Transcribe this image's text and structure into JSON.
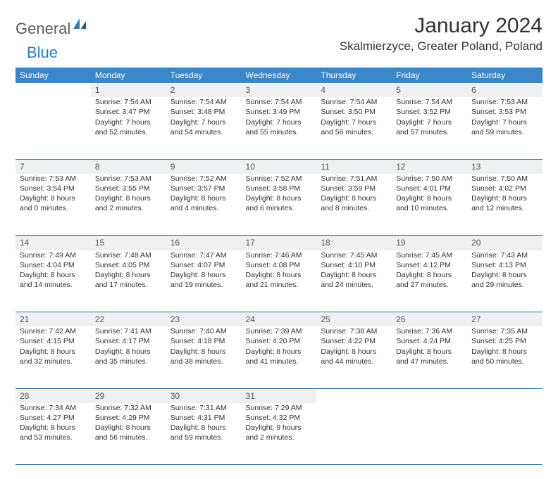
{
  "logo": {
    "text1": "General",
    "text2": "Blue",
    "icon_color": "#2a7fbf"
  },
  "title": "January 2024",
  "location": "Skalmierzyce, Greater Poland, Poland",
  "colors": {
    "header_bg": "#3b87c8",
    "header_text": "#ffffff",
    "daynum_bg": "#eef0f2",
    "rule": "#2a6ea8",
    "text": "#333333"
  },
  "day_headers": [
    "Sunday",
    "Monday",
    "Tuesday",
    "Wednesday",
    "Thursday",
    "Friday",
    "Saturday"
  ],
  "weeks": [
    {
      "nums": [
        "",
        "1",
        "2",
        "3",
        "4",
        "5",
        "6"
      ],
      "cells": [
        null,
        {
          "sr": "7:54 AM",
          "ss": "3:47 PM",
          "dl": "7 hours and 52 minutes."
        },
        {
          "sr": "7:54 AM",
          "ss": "3:48 PM",
          "dl": "7 hours and 54 minutes."
        },
        {
          "sr": "7:54 AM",
          "ss": "3:49 PM",
          "dl": "7 hours and 55 minutes."
        },
        {
          "sr": "7:54 AM",
          "ss": "3:50 PM",
          "dl": "7 hours and 56 minutes."
        },
        {
          "sr": "7:54 AM",
          "ss": "3:52 PM",
          "dl": "7 hours and 57 minutes."
        },
        {
          "sr": "7:53 AM",
          "ss": "3:53 PM",
          "dl": "7 hours and 59 minutes."
        }
      ]
    },
    {
      "nums": [
        "7",
        "8",
        "9",
        "10",
        "11",
        "12",
        "13"
      ],
      "cells": [
        {
          "sr": "7:53 AM",
          "ss": "3:54 PM",
          "dl": "8 hours and 0 minutes."
        },
        {
          "sr": "7:53 AM",
          "ss": "3:55 PM",
          "dl": "8 hours and 2 minutes."
        },
        {
          "sr": "7:52 AM",
          "ss": "3:57 PM",
          "dl": "8 hours and 4 minutes."
        },
        {
          "sr": "7:52 AM",
          "ss": "3:58 PM",
          "dl": "8 hours and 6 minutes."
        },
        {
          "sr": "7:51 AM",
          "ss": "3:59 PM",
          "dl": "8 hours and 8 minutes."
        },
        {
          "sr": "7:50 AM",
          "ss": "4:01 PM",
          "dl": "8 hours and 10 minutes."
        },
        {
          "sr": "7:50 AM",
          "ss": "4:02 PM",
          "dl": "8 hours and 12 minutes."
        }
      ]
    },
    {
      "nums": [
        "14",
        "15",
        "16",
        "17",
        "18",
        "19",
        "20"
      ],
      "cells": [
        {
          "sr": "7:49 AM",
          "ss": "4:04 PM",
          "dl": "8 hours and 14 minutes."
        },
        {
          "sr": "7:48 AM",
          "ss": "4:05 PM",
          "dl": "8 hours and 17 minutes."
        },
        {
          "sr": "7:47 AM",
          "ss": "4:07 PM",
          "dl": "8 hours and 19 minutes."
        },
        {
          "sr": "7:46 AM",
          "ss": "4:08 PM",
          "dl": "8 hours and 21 minutes."
        },
        {
          "sr": "7:45 AM",
          "ss": "4:10 PM",
          "dl": "8 hours and 24 minutes."
        },
        {
          "sr": "7:45 AM",
          "ss": "4:12 PM",
          "dl": "8 hours and 27 minutes."
        },
        {
          "sr": "7:43 AM",
          "ss": "4:13 PM",
          "dl": "8 hours and 29 minutes."
        }
      ]
    },
    {
      "nums": [
        "21",
        "22",
        "23",
        "24",
        "25",
        "26",
        "27"
      ],
      "cells": [
        {
          "sr": "7:42 AM",
          "ss": "4:15 PM",
          "dl": "8 hours and 32 minutes."
        },
        {
          "sr": "7:41 AM",
          "ss": "4:17 PM",
          "dl": "8 hours and 35 minutes."
        },
        {
          "sr": "7:40 AM",
          "ss": "4:18 PM",
          "dl": "8 hours and 38 minutes."
        },
        {
          "sr": "7:39 AM",
          "ss": "4:20 PM",
          "dl": "8 hours and 41 minutes."
        },
        {
          "sr": "7:38 AM",
          "ss": "4:22 PM",
          "dl": "8 hours and 44 minutes."
        },
        {
          "sr": "7:36 AM",
          "ss": "4:24 PM",
          "dl": "8 hours and 47 minutes."
        },
        {
          "sr": "7:35 AM",
          "ss": "4:25 PM",
          "dl": "8 hours and 50 minutes."
        }
      ]
    },
    {
      "nums": [
        "28",
        "29",
        "30",
        "31",
        "",
        "",
        ""
      ],
      "cells": [
        {
          "sr": "7:34 AM",
          "ss": "4:27 PM",
          "dl": "8 hours and 53 minutes."
        },
        {
          "sr": "7:32 AM",
          "ss": "4:29 PM",
          "dl": "8 hours and 56 minutes."
        },
        {
          "sr": "7:31 AM",
          "ss": "4:31 PM",
          "dl": "8 hours and 59 minutes."
        },
        {
          "sr": "7:29 AM",
          "ss": "4:32 PM",
          "dl": "9 hours and 2 minutes."
        },
        null,
        null,
        null
      ]
    }
  ],
  "labels": {
    "sunrise": "Sunrise:",
    "sunset": "Sunset:",
    "daylight": "Daylight:"
  }
}
